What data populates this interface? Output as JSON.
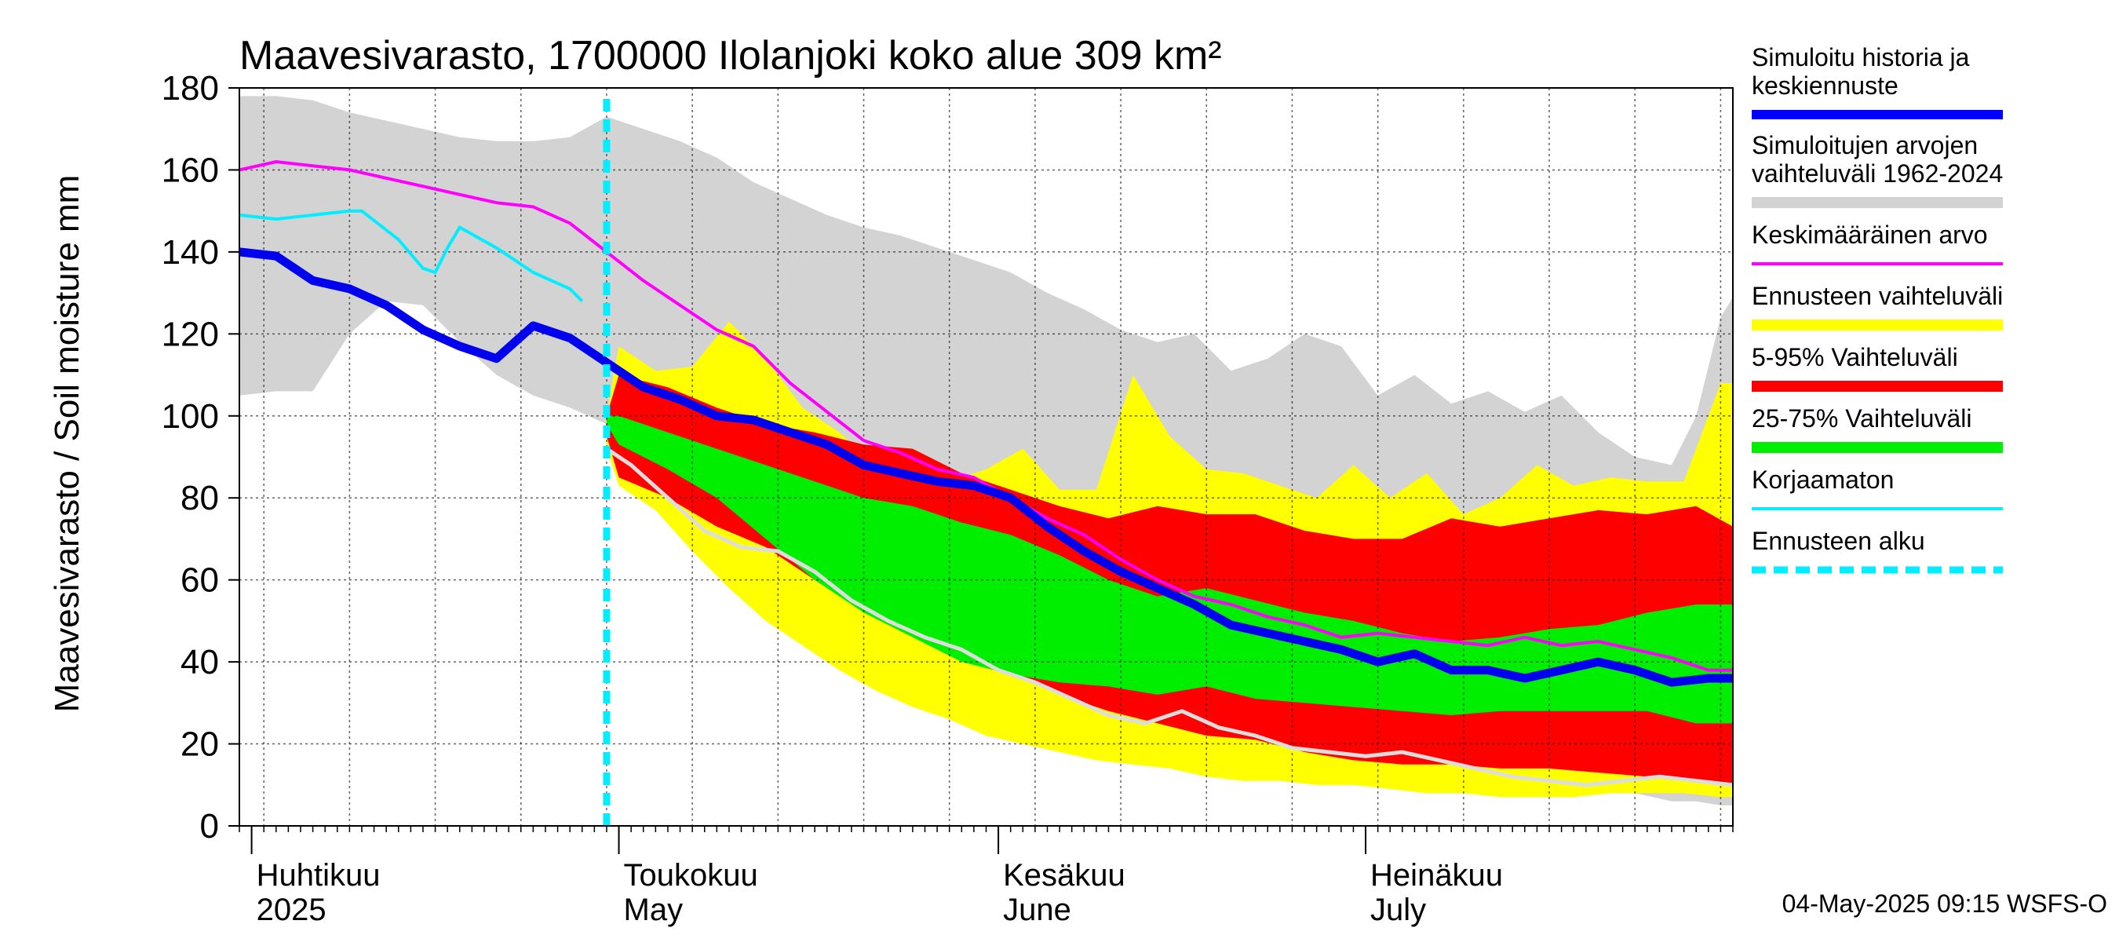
{
  "chart_data": {
    "type": "area",
    "title": "Maavesivarasto, 1700000 Ilolanjoki koko alue 309 km²",
    "ylabel": "Maavesivarasto / Soil moisture   mm",
    "xlabel": "",
    "ylim": [
      0,
      180
    ],
    "yticks": [
      0,
      20,
      40,
      60,
      80,
      100,
      120,
      140,
      160,
      180
    ],
    "x_unit": "day of year 2025",
    "xlim": [
      90,
      212
    ],
    "forecast_start_day": 120,
    "grid": true,
    "legend_position": "right",
    "months": [
      {
        "day": 91,
        "fi": "Huhtikuu",
        "en": "2025"
      },
      {
        "day": 121,
        "fi": "Toukokuu",
        "en": "May"
      },
      {
        "day": 152,
        "fi": "Kesäkuu",
        "en": "June"
      },
      {
        "day": 182,
        "fi": "Heinäkuu",
        "en": "July"
      }
    ],
    "legend": [
      {
        "label": "Simuloitu historia ja keskiennuste",
        "color": "#0000ff",
        "style": "thick"
      },
      {
        "label": "Simuloitujen arvojen vaihteluväli 1962-2024",
        "color": "#d3d3d3",
        "style": "band"
      },
      {
        "label": "Keskimääräinen arvo",
        "color": "#ff00ff",
        "style": "line"
      },
      {
        "label": "Ennusteen vaihteluväli",
        "color": "#ffff00",
        "style": "band"
      },
      {
        "label": "5-95% Vaihteluväli",
        "color": "#ff0000",
        "style": "band"
      },
      {
        "label": "25-75% Vaihteluväli",
        "color": "#00ee00",
        "style": "band"
      },
      {
        "label": "Korjaamaton",
        "color": "#00eeff",
        "style": "line"
      },
      {
        "label": "Ennusteen alku",
        "color": "#00eeff",
        "style": "dashed"
      }
    ],
    "series": {
      "history_range": {
        "x": [
          90,
          93,
          96,
          99,
          102,
          105,
          108,
          111,
          114,
          117,
          120,
          123,
          126,
          129,
          132,
          135,
          138,
          141,
          144,
          147,
          150,
          153,
          156,
          159,
          162,
          165,
          168,
          171,
          174,
          177,
          180,
          183,
          186,
          189,
          192,
          195,
          198,
          201,
          204,
          207,
          209,
          211,
          212
        ],
        "upper": [
          178,
          178,
          177,
          174,
          172,
          170,
          168,
          167,
          167,
          168,
          173,
          170,
          167,
          163,
          157,
          153,
          149,
          146,
          144,
          141,
          138,
          135,
          130,
          126,
          121,
          118,
          120,
          111,
          114,
          120,
          117,
          105,
          110,
          103,
          106,
          101,
          105,
          96,
          90,
          88,
          100,
          124,
          129
        ],
        "lower": [
          105,
          106,
          106,
          120,
          128,
          127,
          118,
          110,
          105,
          102,
          98,
          94,
          86,
          75,
          64,
          55,
          48,
          42,
          37,
          32,
          28,
          26,
          24,
          22,
          20,
          19,
          17,
          16,
          14,
          12,
          13,
          12,
          11,
          10,
          11,
          10,
          10,
          9,
          8,
          6,
          6,
          5,
          5
        ]
      },
      "forecast_range": {
        "x": [
          120,
          121,
          124,
          127,
          130,
          133,
          136,
          139,
          142,
          145,
          148,
          151,
          154,
          157,
          160,
          163,
          166,
          169,
          172,
          175,
          178,
          181,
          184,
          187,
          190,
          193,
          196,
          199,
          202,
          205,
          208,
          211,
          212
        ],
        "upper": [
          100,
          117,
          111,
          112,
          123,
          114,
          102,
          96,
          88,
          87,
          84,
          87,
          92,
          82,
          82,
          110,
          95,
          87,
          86,
          83,
          80,
          88,
          80,
          86,
          76,
          80,
          88,
          83,
          85,
          84,
          84,
          108,
          108
        ],
        "lower": [
          92,
          83,
          77,
          67,
          58,
          50,
          44,
          38,
          33,
          29,
          26,
          22,
          20,
          18,
          16,
          15,
          14,
          12,
          11,
          11,
          10,
          10,
          9,
          8,
          8,
          7,
          7,
          7,
          8,
          8,
          8,
          7,
          7
        ]
      },
      "p5_95": {
        "x": [
          120,
          121,
          125,
          129,
          133,
          137,
          141,
          145,
          149,
          153,
          157,
          161,
          165,
          169,
          173,
          177,
          181,
          185,
          189,
          193,
          197,
          201,
          205,
          209,
          212
        ],
        "upper": [
          100,
          110,
          107,
          102,
          98,
          96,
          93,
          92,
          86,
          82,
          78,
          75,
          78,
          76,
          76,
          72,
          70,
          70,
          75,
          73,
          75,
          77,
          76,
          78,
          73
        ],
        "lower": [
          95,
          85,
          80,
          73,
          68,
          60,
          53,
          47,
          42,
          37,
          32,
          28,
          25,
          22,
          21,
          18,
          16,
          15,
          15,
          14,
          14,
          13,
          12,
          11,
          10
        ]
      },
      "p25_75": {
        "x": [
          120,
          121,
          125,
          129,
          133,
          137,
          141,
          145,
          149,
          153,
          157,
          161,
          165,
          169,
          173,
          177,
          181,
          185,
          189,
          193,
          197,
          201,
          205,
          209,
          212
        ],
        "upper": [
          100,
          100,
          96,
          92,
          88,
          84,
          80,
          78,
          74,
          71,
          66,
          60,
          56,
          58,
          55,
          52,
          50,
          47,
          45,
          46,
          48,
          49,
          52,
          54,
          54
        ],
        "lower": [
          98,
          93,
          87,
          80,
          70,
          60,
          52,
          46,
          40,
          37,
          35,
          34,
          32,
          34,
          31,
          30,
          29,
          28,
          27,
          28,
          28,
          28,
          28,
          25,
          25
        ]
      },
      "history_mean": {
        "x": [
          90,
          93,
          96,
          99,
          102,
          105,
          108,
          111,
          114,
          117,
          120,
          123,
          126,
          129,
          132,
          135,
          138,
          141,
          144,
          147,
          150,
          153,
          156,
          159,
          162,
          165,
          168,
          171,
          174,
          177,
          180,
          183,
          186,
          189,
          192,
          195,
          198,
          201,
          204,
          207,
          210,
          212
        ],
        "values": [
          140,
          139,
          133,
          131,
          127,
          121,
          117,
          114,
          122,
          119,
          113,
          107,
          104,
          100,
          99,
          96,
          93,
          88,
          86,
          84,
          83,
          80,
          73,
          67,
          62,
          58,
          54,
          49,
          47,
          45,
          43,
          40,
          42,
          38,
          38,
          36,
          38,
          40,
          38,
          35,
          36,
          36
        ]
      },
      "mean": {
        "x": [
          90,
          93,
          96,
          99,
          102,
          105,
          108,
          111,
          114,
          117,
          120,
          123,
          126,
          129,
          132,
          135,
          138,
          141,
          144,
          147,
          150,
          153,
          156,
          159,
          162,
          165,
          168,
          171,
          174,
          177,
          180,
          183,
          186,
          189,
          192,
          195,
          198,
          201,
          204,
          207,
          210,
          212
        ],
        "values": [
          160,
          162,
          161,
          160,
          158,
          156,
          154,
          152,
          151,
          147,
          140,
          133,
          127,
          121,
          117,
          108,
          101,
          94,
          91,
          87,
          85,
          80,
          75,
          71,
          65,
          60,
          56,
          54,
          51,
          49,
          46,
          47,
          46,
          45,
          44,
          46,
          44,
          45,
          43,
          41,
          38,
          38
        ]
      },
      "uncorrected": {
        "x": [
          90,
          93,
          96,
          99,
          100,
          103,
          105,
          106,
          107,
          108,
          111,
          114,
          117,
          118
        ],
        "values": [
          149,
          148,
          149,
          150,
          150,
          143,
          136,
          135,
          141,
          146,
          141,
          135,
          131,
          128
        ]
      },
      "corrected_gray": {
        "x": [
          120,
          122,
          125,
          128,
          131,
          134,
          137,
          140,
          143,
          146,
          149,
          152,
          155,
          158,
          161,
          164,
          167,
          170,
          173,
          176,
          179,
          182,
          185,
          188,
          191,
          194,
          197,
          200,
          203,
          206,
          209,
          212
        ],
        "values": [
          92,
          88,
          80,
          72,
          68,
          67,
          62,
          55,
          50,
          46,
          43,
          38,
          35,
          31,
          27,
          25,
          28,
          24,
          22,
          19,
          18,
          17,
          18,
          16,
          14,
          12,
          11,
          10,
          11,
          12,
          11,
          10
        ]
      }
    }
  },
  "footer": {
    "timestamp": "04-May-2025 09:15 WSFS-O"
  }
}
